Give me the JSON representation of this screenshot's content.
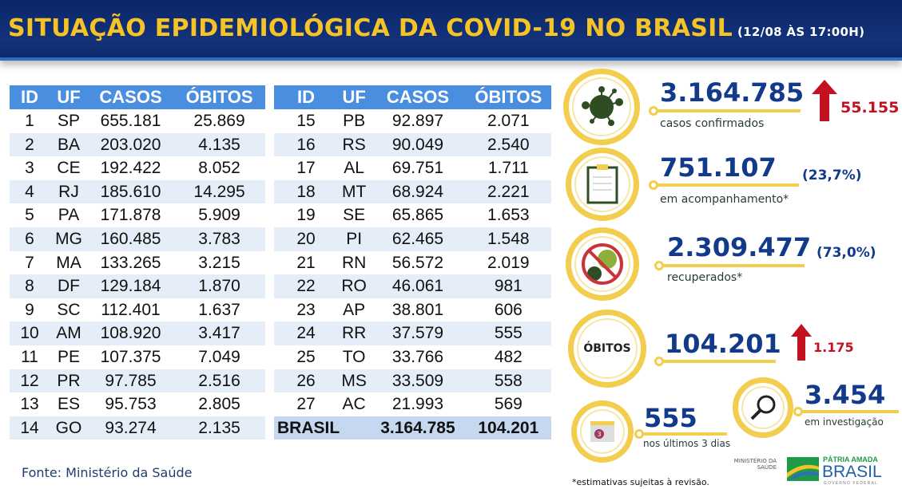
{
  "header": {
    "title": "SITUAÇÃO EPIDEMIOLÓGICA DA COVID-19 NO BRASIL",
    "timestamp": "(12/08 ÀS 17:00H)"
  },
  "table": {
    "columns": [
      "ID",
      "UF",
      "CASOS",
      "ÓBITOS"
    ],
    "left": [
      [
        "1",
        "SP",
        "655.181",
        "25.869"
      ],
      [
        "2",
        "BA",
        "203.020",
        "4.135"
      ],
      [
        "3",
        "CE",
        "192.422",
        "8.052"
      ],
      [
        "4",
        "RJ",
        "185.610",
        "14.295"
      ],
      [
        "5",
        "PA",
        "171.878",
        "5.909"
      ],
      [
        "6",
        "MG",
        "160.485",
        "3.783"
      ],
      [
        "7",
        "MA",
        "133.265",
        "3.215"
      ],
      [
        "8",
        "DF",
        "129.184",
        "1.870"
      ],
      [
        "9",
        "SC",
        "112.401",
        "1.637"
      ],
      [
        "10",
        "AM",
        "108.920",
        "3.417"
      ],
      [
        "11",
        "PE",
        "107.375",
        "7.049"
      ],
      [
        "12",
        "PR",
        "97.785",
        "2.516"
      ],
      [
        "13",
        "ES",
        "95.753",
        "2.805"
      ],
      [
        "14",
        "GO",
        "93.274",
        "2.135"
      ]
    ],
    "right": [
      [
        "15",
        "PB",
        "92.897",
        "2.071"
      ],
      [
        "16",
        "RS",
        "90.049",
        "2.540"
      ],
      [
        "17",
        "AL",
        "69.751",
        "1.711"
      ],
      [
        "18",
        "MT",
        "68.924",
        "2.221"
      ],
      [
        "19",
        "SE",
        "65.865",
        "1.653"
      ],
      [
        "20",
        "PI",
        "62.465",
        "1.548"
      ],
      [
        "21",
        "RN",
        "56.572",
        "2.019"
      ],
      [
        "22",
        "RO",
        "46.061",
        "981"
      ],
      [
        "23",
        "AP",
        "38.801",
        "606"
      ],
      [
        "24",
        "RR",
        "37.579",
        "555"
      ],
      [
        "25",
        "TO",
        "33.766",
        "482"
      ],
      [
        "26",
        "MS",
        "33.509",
        "558"
      ],
      [
        "27",
        "AC",
        "21.993",
        "569"
      ]
    ],
    "total": {
      "label": "BRASIL",
      "casos": "3.164.785",
      "obitos": "104.201"
    }
  },
  "source": "Fonte: Ministério da Saúde",
  "stats": {
    "confirmed": {
      "value": "3.164.785",
      "label": "casos confirmados",
      "increase": "55.155",
      "icon": "virus-icon"
    },
    "monitoring": {
      "value": "751.107",
      "pct": "(23,7%)",
      "label": "em acompanhamento*",
      "icon": "clipboard-icon"
    },
    "recovered": {
      "value": "2.309.477",
      "pct": "(73,0%)",
      "label": "recuperados*",
      "icon": "no-virus-icon"
    },
    "deaths": {
      "badge": "ÓBITOS",
      "value": "104.201",
      "increase": "1.175"
    },
    "last3": {
      "value": "555",
      "label": "nos últimos 3 dias",
      "cal": "3"
    },
    "investigation": {
      "value": "3.454",
      "label": "em investigação"
    }
  },
  "footnote": "*estimativas sujeitas à revisão.",
  "logos": {
    "ministry": "MINISTÉRIO DA SAÚDE",
    "brand_top": "PÁTRIA AMADA",
    "brand": "BRASIL",
    "brand_sub": "GOVERNO FEDERAL"
  },
  "colors": {
    "navy": "#0c2668",
    "yellow": "#f6c327",
    "blue": "#4a8ee0",
    "red": "#c3121f"
  }
}
